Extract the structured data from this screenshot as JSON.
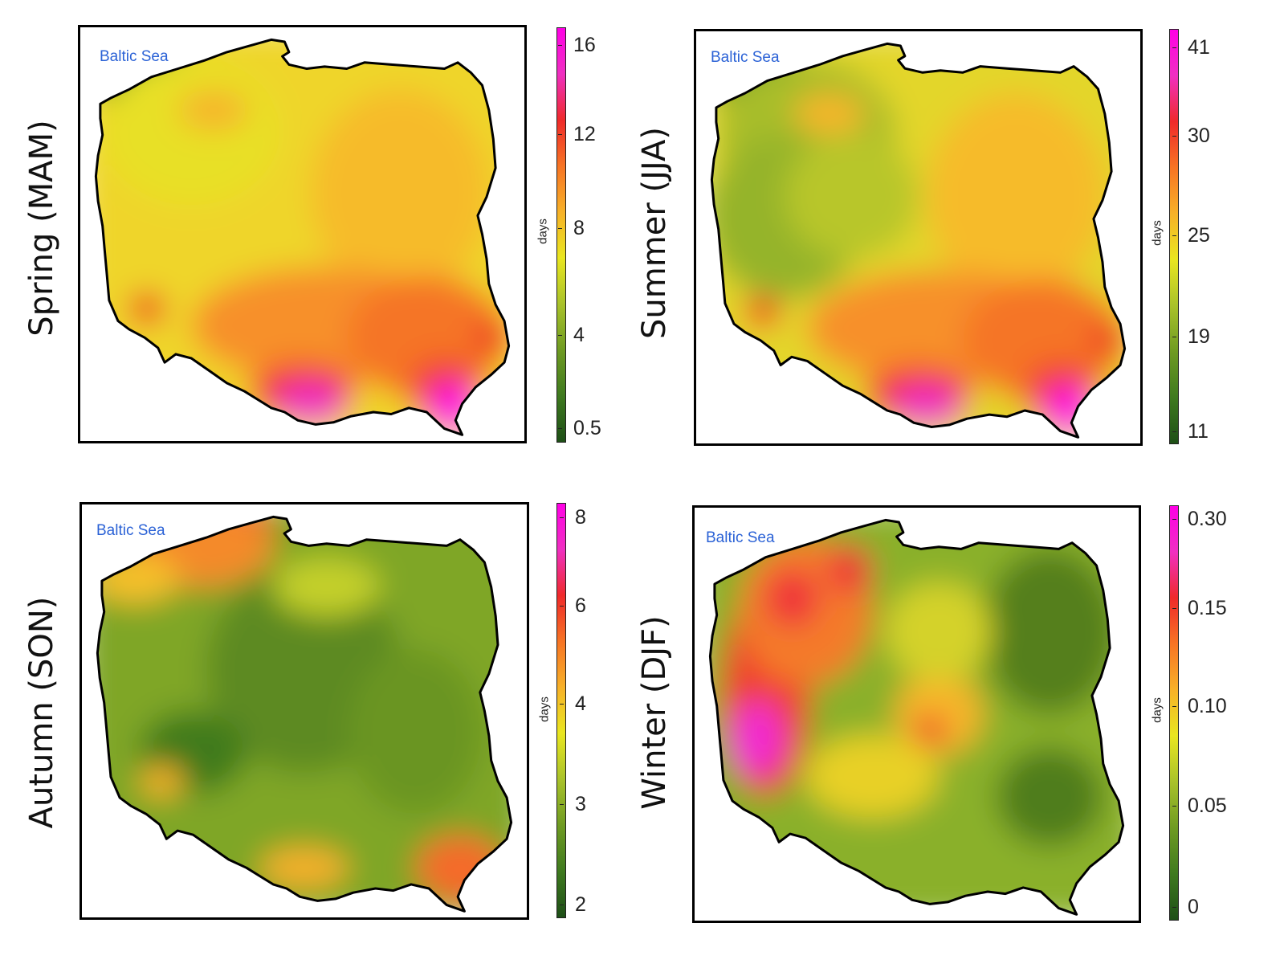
{
  "sea_label": "Baltic Sea",
  "unit": "days",
  "panels": [
    {
      "id": "spring",
      "title": "Spring (MAM)",
      "ticks": [
        "16",
        "12",
        "8",
        "4",
        "0.5"
      ],
      "tick_values": [
        16,
        12,
        8,
        4,
        0.5
      ],
      "range": [
        0.5,
        17
      ],
      "pattern": "south-high",
      "hotspots": [
        "south mountains",
        "south-east corner"
      ]
    },
    {
      "id": "summer",
      "title": "Summer (JJA)",
      "ticks": [
        "41",
        "30",
        "25",
        "19",
        "11"
      ],
      "tick_values": [
        41,
        30,
        25,
        19,
        11
      ],
      "range": [
        11,
        43
      ],
      "pattern": "south-high",
      "hotspots": [
        "south mountains",
        "south-east corner"
      ]
    },
    {
      "id": "autumn",
      "title": "Autumn (SON)",
      "ticks": [
        "8",
        "6",
        "4",
        "3",
        "2"
      ],
      "tick_values": [
        8,
        6,
        4,
        3,
        2
      ],
      "range": [
        1.8,
        8.3
      ],
      "pattern": "coast-and-mountains-high",
      "hotspots": [
        "north coast",
        "south-east corner"
      ]
    },
    {
      "id": "winter",
      "title": "Winter (DJF)",
      "ticks": [
        "0.30",
        "0.15",
        "0.10",
        "0.05",
        "0"
      ],
      "tick_values": [
        0.3,
        0.15,
        0.1,
        0.05,
        0
      ],
      "range": [
        0,
        0.31
      ],
      "pattern": "west-high",
      "hotspots": [
        "western border",
        "central spot"
      ]
    }
  ],
  "colorscale": [
    "#1e4f17",
    "#3f7a1f",
    "#6f9b22",
    "#a9c22a",
    "#e9e620",
    "#f7b128",
    "#f77424",
    "#ef2a2a",
    "#f02fc1",
    "#ff00e6"
  ]
}
